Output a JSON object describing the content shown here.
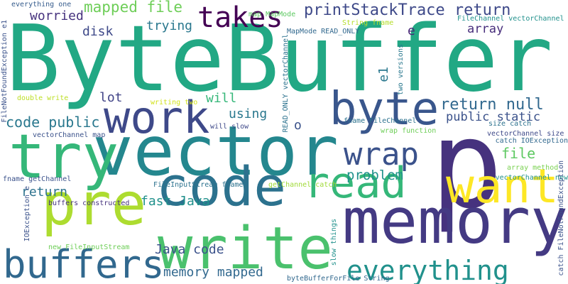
{
  "words": [
    {
      "text": "ByteBuffer",
      "color": "#22a884"
    },
    {
      "text": "p",
      "color": "#46327e"
    },
    {
      "text": "vector",
      "color": "#24878e"
    },
    {
      "text": "try",
      "color": "#35b779"
    },
    {
      "text": "code",
      "color": "#2c728e"
    },
    {
      "text": "pre",
      "color": "#addc30"
    },
    {
      "text": "memory",
      "color": "#443a83"
    },
    {
      "text": "write",
      "color": "#4ac16d"
    },
    {
      "text": "work",
      "color": "#3e4989"
    },
    {
      "text": "byte",
      "color": "#39568c"
    },
    {
      "text": "want",
      "color": "#fde725"
    },
    {
      "text": "read",
      "color": "#35b779"
    },
    {
      "text": "buffers",
      "color": "#31688e"
    },
    {
      "text": "wrap",
      "color": "#3b528b"
    },
    {
      "text": "everything",
      "color": "#21918c"
    },
    {
      "text": "takes",
      "color": "#440154"
    },
    {
      "text": "printStackTrace return",
      "color": "#3e4989"
    },
    {
      "text": "mapped file",
      "color": "#6ece58"
    },
    {
      "text": "return null",
      "color": "#31688e"
    },
    {
      "text": "code public",
      "color": "#2a788e"
    },
    {
      "text": "file",
      "color": "#5ec962"
    },
    {
      "text": "problem",
      "color": "#21918c"
    },
    {
      "text": "fast Java",
      "color": "#21918c"
    },
    {
      "text": "Java code",
      "color": "#3b528b"
    },
    {
      "text": "memory mapped",
      "color": "#31688e"
    },
    {
      "text": "disk",
      "color": "#3e4989"
    },
    {
      "text": "trying",
      "color": "#2a788e"
    },
    {
      "text": "worried",
      "color": "#46327e"
    },
    {
      "text": "lot",
      "color": "#414487"
    },
    {
      "text": "will",
      "color": "#35b779"
    },
    {
      "text": "using",
      "color": "#2a788e"
    },
    {
      "text": "public static",
      "color": "#3b528b"
    },
    {
      "text": "array",
      "color": "#472d7b"
    },
    {
      "text": "return",
      "color": "#2c728e"
    },
    {
      "text": "e",
      "color": "#482878"
    },
    {
      "text": "e1",
      "color": "#2a788e"
    },
    {
      "text": "o",
      "color": "#3b528b"
    },
    {
      "text": "everything one",
      "color": "#365c8d"
    },
    {
      "text": "FileNotFoundException e1",
      "color": "#3b528b"
    },
    {
      "text": "String fname",
      "color": "#b5de2b"
    },
    {
      "text": "map MapMode",
      "color": "#5ec962"
    },
    {
      "text": "MapMode READ_ONLY",
      "color": "#31688e"
    },
    {
      "text": "FileChannel vectorChannel",
      "color": "#21918c"
    },
    {
      "text": "double write",
      "color": "#bddf26"
    },
    {
      "text": "writing two",
      "color": "#d2e21b"
    },
    {
      "text": "will slow",
      "color": "#3e4989"
    },
    {
      "text": "READ_ONLY vectorChannel",
      "color": "#2c728e"
    },
    {
      "text": "fname FileChannel",
      "color": "#2c728e"
    },
    {
      "text": "two versions",
      "color": "#2a788e"
    },
    {
      "text": "size catch",
      "color": "#2c728e"
    },
    {
      "text": "vectorChannel size",
      "color": "#3e4989"
    },
    {
      "text": "catch IOException",
      "color": "#31688e"
    },
    {
      "text": "wrap function",
      "color": "#6ece58"
    },
    {
      "text": "vectorChannel map",
      "color": "#3b528b"
    },
    {
      "text": "fname getChannel",
      "color": "#3b528b"
    },
    {
      "text": "FileInputStream fname",
      "color": "#2c728e"
    },
    {
      "text": "getChannel catch",
      "color": "#a0da39"
    },
    {
      "text": "array method",
      "color": "#7ad151"
    },
    {
      "text": "vectorChannel new",
      "color": "#21918c"
    },
    {
      "text": "catch FileNotFoundException",
      "color": "#3b528b"
    },
    {
      "text": "buffers constructed",
      "color": "#46327e"
    },
    {
      "text": "IOException e",
      "color": "#3b528b"
    },
    {
      "text": "new FileInputStream",
      "color": "#6ece58"
    },
    {
      "text": "slow things",
      "color": "#21918c"
    },
    {
      "text": "byteBufferForFile String",
      "color": "#31688e"
    }
  ]
}
